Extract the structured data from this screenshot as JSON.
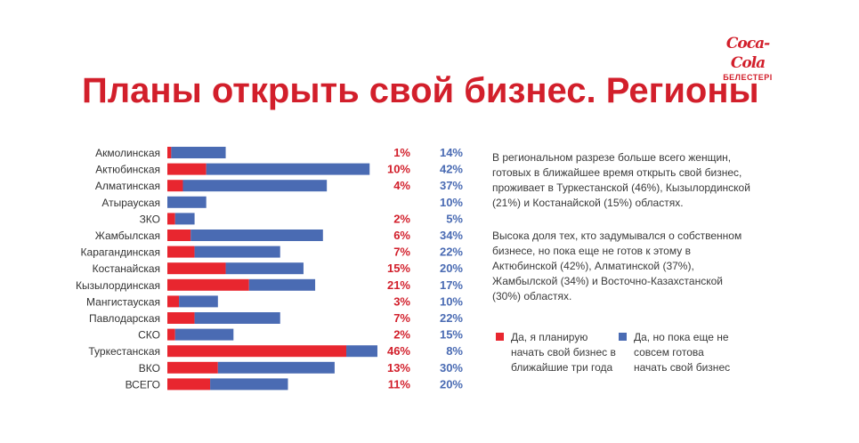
{
  "logo": {
    "brand": "Coca-Cola",
    "sub": "БЕЛЕСТЕРІ"
  },
  "title": "Планы открыть свой бизнес. Регионы",
  "colors": {
    "red": "#e8262f",
    "blue": "#4a6bb3",
    "title_red": "#d21f2b"
  },
  "chart_data": {
    "type": "bar",
    "stacked": true,
    "orientation": "horizontal",
    "categories": [
      "Акмолинская",
      "Актюбинская",
      "Алматинская",
      "Атырауская",
      "ЗКО",
      "Жамбылская",
      "Карагандинская",
      "Костанайская",
      "Кызылординская",
      "Мангистауская",
      "Павлодарская",
      "СКО",
      "Туркестанская",
      "ВКО",
      "ВСЕГО"
    ],
    "series": [
      {
        "name": "Да, я планирую начать свой бизнес в ближайшие три года",
        "values": [
          1,
          10,
          4,
          null,
          2,
          6,
          7,
          15,
          21,
          3,
          7,
          2,
          46,
          13,
          11
        ],
        "labels": [
          "1%",
          "10%",
          "4%",
          "",
          "2%",
          "6%",
          "7%",
          "15%",
          "21%",
          "3%",
          "7%",
          "2%",
          "46%",
          "13%",
          "11%"
        ]
      },
      {
        "name": "Да, но пока еще не совсем готова начать свой бизнес",
        "values": [
          14,
          42,
          37,
          10,
          5,
          34,
          22,
          20,
          17,
          10,
          22,
          15,
          8,
          30,
          20
        ],
        "labels": [
          "14%",
          "42%",
          "37%",
          "10%",
          "5%",
          "34%",
          "22%",
          "20%",
          "17%",
          "10%",
          "22%",
          "15%",
          "8%",
          "30%",
          "20%"
        ]
      }
    ],
    "legend": [
      {
        "label": "Да, я планирую начать свой бизнес в ближайшие три года"
      },
      {
        "label": "Да, но пока еще не совсем готова начать свой бизнес"
      }
    ],
    "xlim": [
      0,
      60
    ]
  },
  "text": {
    "p1": "В региональном разрезе больше всего женщин, готовых в ближайшее время открыть свой бизнес, проживает в Туркестанской (46%), Кызылординской (21%) и Костанайской (15%) областях.",
    "p2": "Высока доля тех, кто задумывался о собственном бизнесе, но пока еще не готов к этому в Актюбинской (42%), Алматинской (37%), Жамбылской (34%) и Восточно-Казахстанской (30%) областях."
  }
}
